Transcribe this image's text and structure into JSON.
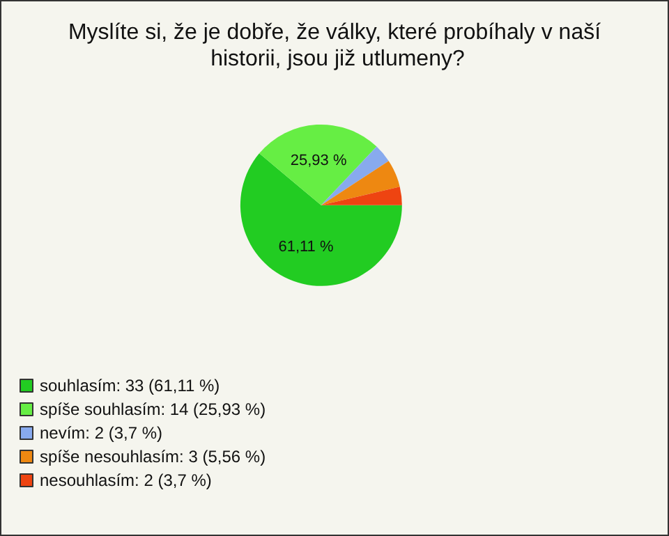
{
  "chart_data": {
    "type": "pie",
    "title": "Myslíte si, že je dobře, že války, které probíhaly v naší historii, jsou již utlumeny?",
    "categories": [
      "souhlasím: 33 (61,11 %)",
      "spíše souhlasím: 14 (25,93 %)",
      "nevím: 2 (3,7 %)",
      "spíše nesouhlasím: 3 (5,56 %)",
      "nesouhlasím: 2 (3,7 %)"
    ],
    "values": [
      61.11,
      25.93,
      3.7,
      5.56,
      3.7
    ],
    "value_labels": [
      "61,11 %",
      "25,93 %",
      null,
      null,
      null
    ],
    "colors": [
      "#22cc22",
      "#66ee44",
      "#88aaee",
      "#ee8811",
      "#ee4411"
    ],
    "legend": "bottom left"
  }
}
